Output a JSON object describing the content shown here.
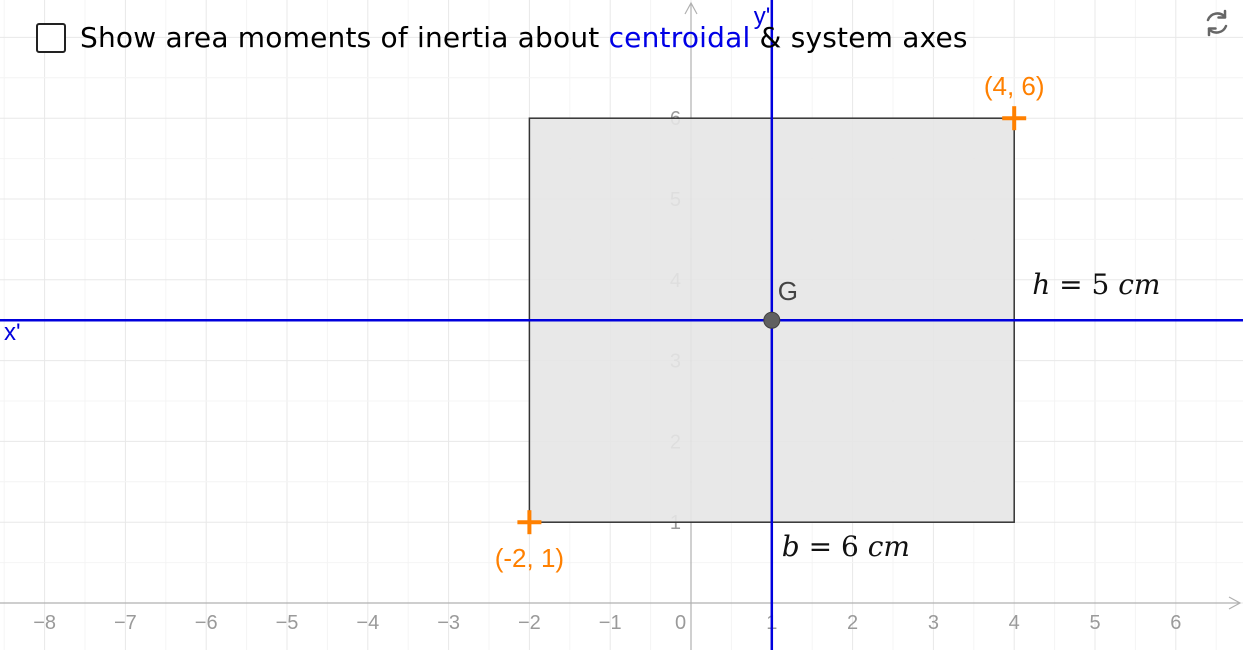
{
  "control": {
    "prefix": "Show area moments of inertia about ",
    "highlight": "centroidal",
    "suffix": " & system axes",
    "checked": false
  },
  "icons": {
    "reset": "refresh-icon"
  },
  "points": {
    "top_right": "(4, 6)",
    "bottom_left": "(-2, 1)",
    "centroid": "G"
  },
  "axes": {
    "x_prime": "x'",
    "y_prime": "y'"
  },
  "dimensions": {
    "height": {
      "var": "h",
      "eq": " = 5 ",
      "unit": "cm"
    },
    "base": {
      "var": "b",
      "eq": " = 6 ",
      "unit": "cm"
    }
  },
  "chart_data": {
    "type": "diagram",
    "x_ticks": [
      "−8",
      "−7",
      "−6",
      "−5",
      "−4",
      "−3",
      "−2",
      "−1",
      "0",
      "1",
      "2",
      "3",
      "4",
      "5",
      "6"
    ],
    "y_ticks": [
      "1",
      "2",
      "3",
      "4",
      "5",
      "6"
    ],
    "x_range": [
      -8.6,
      6.8
    ],
    "y_range": [
      -0.4,
      7.4
    ],
    "rectangle": {
      "x1": -2,
      "y1": 1,
      "x2": 4,
      "y2": 6
    },
    "centroid": {
      "x": 1,
      "y": 3.5
    },
    "colors": {
      "axis_blue": "#0000dd",
      "point_orange": "#ff8000",
      "fill": "#e5e5e5"
    }
  }
}
